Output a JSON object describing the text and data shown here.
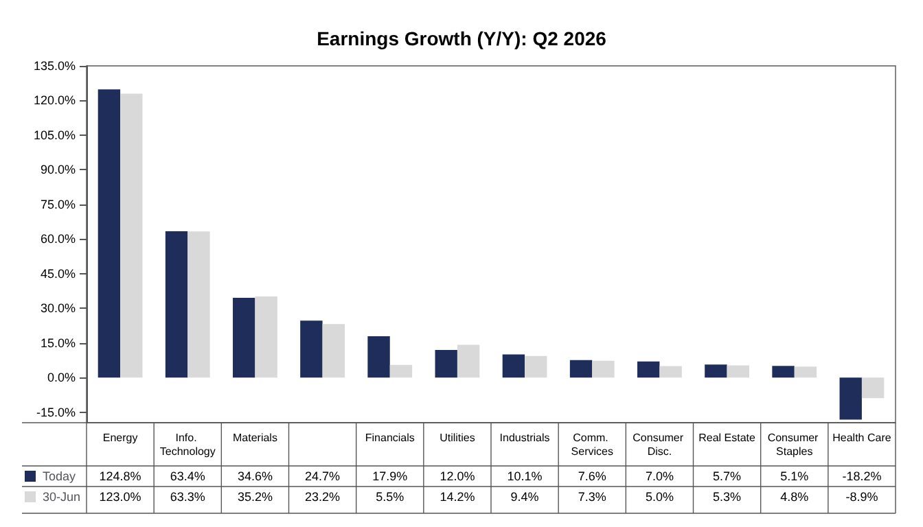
{
  "chart_data": {
    "type": "bar",
    "title": "Earnings Growth (Y/Y): Q2 2026",
    "categories": [
      "Energy",
      "Info. Technology",
      "Materials",
      null,
      "Financials",
      "Utilities",
      "Industrials",
      "Comm. Services",
      "Consumer Disc.",
      "Real Estate",
      "Consumer Staples",
      "Health Care"
    ],
    "series": [
      {
        "name": "Today",
        "color": "#1f2d5a",
        "values": [
          124.8,
          63.4,
          34.6,
          24.7,
          17.9,
          12.0,
          10.1,
          7.6,
          7.0,
          5.7,
          5.1,
          -18.2
        ],
        "value_labels": [
          "124.8%",
          "63.4%",
          "34.6%",
          "24.7%",
          "17.9%",
          "12.0%",
          "10.1%",
          "7.6%",
          "7.0%",
          "5.7%",
          "5.1%",
          "-18.2%"
        ]
      },
      {
        "name": "30-Jun",
        "color": "#d9d9d9",
        "values": [
          123.0,
          63.3,
          35.2,
          23.2,
          5.5,
          14.2,
          9.4,
          7.3,
          5.0,
          5.3,
          4.8,
          -8.9
        ],
        "value_labels": [
          "123.0%",
          "63.3%",
          "35.2%",
          "23.2%",
          "5.5%",
          "14.2%",
          "9.4%",
          "7.3%",
          "5.0%",
          "5.3%",
          "4.8%",
          "-8.9%"
        ]
      }
    ],
    "ylim": [
      -19.5,
      135
    ],
    "yticks": [
      {
        "value": -15,
        "label": "-15.0%"
      },
      {
        "value": 0,
        "label": "0.0%"
      },
      {
        "value": 15,
        "label": "15.0%"
      },
      {
        "value": 30,
        "label": "30.0%"
      },
      {
        "value": 45,
        "label": "45.0%"
      },
      {
        "value": 60,
        "label": "60.0%"
      },
      {
        "value": 75,
        "label": "75.0%"
      },
      {
        "value": 90,
        "label": "90.0%"
      },
      {
        "value": 105,
        "label": "105.0%"
      },
      {
        "value": 120,
        "label": "120.0%"
      },
      {
        "value": 135,
        "label": "135.0%"
      }
    ],
    "grid": false,
    "legend": "bottom left"
  }
}
